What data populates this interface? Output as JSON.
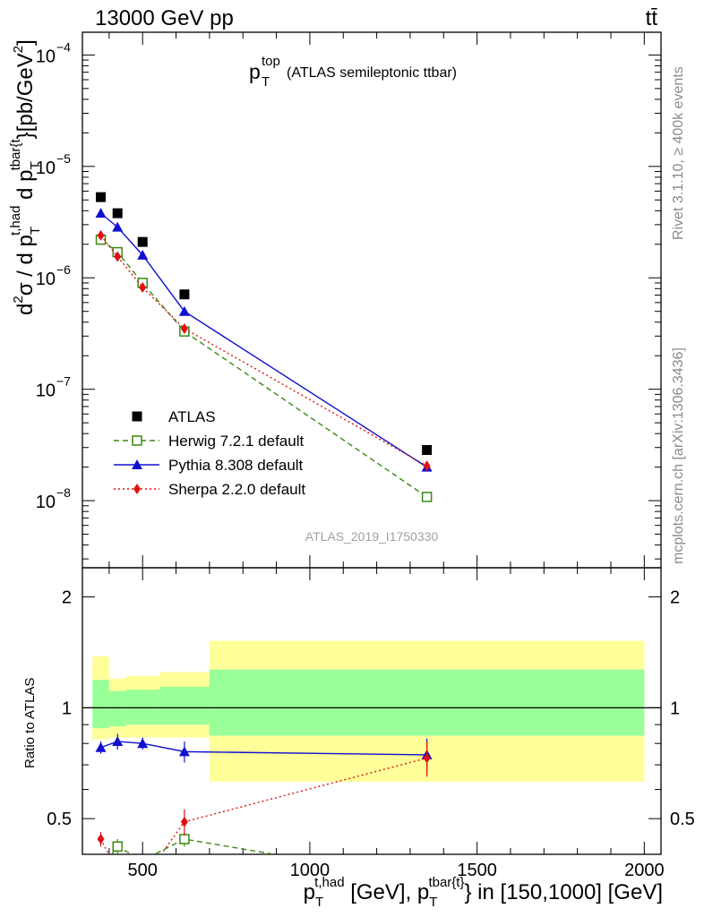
{
  "header": {
    "energy_label": "13000 GeV pp",
    "process_label": "tt̄"
  },
  "side_labels": {
    "rivet": "Rivet 3.1.10, ≥ 400k events",
    "mcplots": "mcplots.cern.ch [arXiv:1306.3436]"
  },
  "watermark": "ATLAS_2019_I1750330",
  "colors": {
    "atlas": "#000000",
    "herwig": "#3a8a12",
    "pythia": "#1010d0",
    "sherpa": "#e01010",
    "band_yellow": "#ffff99",
    "band_green": "#99ff99"
  },
  "chart_data": [
    {
      "type": "scatter",
      "panel": "main",
      "title_main": "p",
      "title_sub": "T",
      "title_sup": "top",
      "title_rest": "(ATLAS semileptonic ttbar)",
      "ylabel": "d²σ / d p_T^{t,had} d p_T^{tbar{t}}[pb/GeV²]",
      "y_scale": "log",
      "xlim": [
        320,
        2050
      ],
      "ylim": [
        2.5e-09,
        0.00016
      ],
      "y_tick_labels": [
        {
          "base": "10",
          "exp": "−8",
          "value": 1e-08
        },
        {
          "base": "10",
          "exp": "−7",
          "value": 1e-07
        },
        {
          "base": "10",
          "exp": "−6",
          "value": 1e-06
        },
        {
          "base": "10",
          "exp": "−5",
          "value": 1e-05
        },
        {
          "base": "10",
          "exp": "−4",
          "value": 0.0001
        }
      ],
      "legend_position": "lower-left",
      "series": [
        {
          "name": "ATLAS",
          "style": "data",
          "marker": "filled-square",
          "x": [
            375,
            425,
            500,
            625,
            1350
          ],
          "y": [
            5.3e-06,
            3.8e-06,
            2.1e-06,
            7.1e-07,
            2.85e-08
          ]
        },
        {
          "name": "Herwig 7.2.1 default",
          "style": "dashed",
          "marker": "open-square",
          "x": [
            375,
            425,
            500,
            625,
            1350
          ],
          "y": [
            2.2e-06,
            1.7e-06,
            9e-07,
            3.3e-07,
            1.08e-08
          ]
        },
        {
          "name": "Pythia 8.308 default",
          "style": "solid",
          "marker": "triangle",
          "x": [
            375,
            425,
            500,
            625,
            1350
          ],
          "y": [
            3.8e-06,
            2.85e-06,
            1.6e-06,
            5e-07,
            2e-08
          ]
        },
        {
          "name": "Sherpa 2.2.0 default",
          "style": "dotted",
          "marker": "diamond",
          "x": [
            375,
            425,
            500,
            625,
            1350
          ],
          "y": [
            2.4e-06,
            1.55e-06,
            8.2e-07,
            3.5e-07,
            2.05e-08
          ]
        }
      ]
    },
    {
      "type": "line",
      "panel": "ratio",
      "ylabel": "Ratio to ATLAS",
      "y_scale": "log",
      "xlim": [
        320,
        2050
      ],
      "ylim": [
        0.4,
        2.4
      ],
      "x_ticks": [
        500,
        1000,
        1500,
        2000
      ],
      "x_tick_labels": [
        "500",
        "1000",
        "1500",
        "2000"
      ],
      "y_ticks": [
        0.5,
        1,
        2
      ],
      "y_tick_labels": [
        "0.5",
        "1",
        "2"
      ],
      "xlabel_parts": {
        "p1": "p",
        "s1": "T",
        "sup1": "t,had",
        "mid": " [GeV], ",
        "p2": "p",
        "s2": "T",
        "sup2": "tbar{t}",
        "tail": "} in [150,1000] [GeV]"
      },
      "bands": [
        {
          "x0": 350,
          "x1": 400,
          "yellow": [
            0.82,
            1.38
          ],
          "green": [
            0.88,
            1.19
          ]
        },
        {
          "x0": 400,
          "x1": 450,
          "yellow": [
            0.83,
            1.2
          ],
          "green": [
            0.89,
            1.11
          ]
        },
        {
          "x0": 450,
          "x1": 550,
          "yellow": [
            0.83,
            1.22
          ],
          "green": [
            0.9,
            1.12
          ]
        },
        {
          "x0": 550,
          "x1": 700,
          "yellow": [
            0.83,
            1.25
          ],
          "green": [
            0.9,
            1.14
          ]
        },
        {
          "x0": 700,
          "x1": 2000,
          "yellow": [
            0.63,
            1.52
          ],
          "green": [
            0.84,
            1.27
          ]
        }
      ],
      "series": [
        {
          "name": "Herwig 7.2.1 default",
          "x": [
            375,
            425,
            500,
            625,
            1350
          ],
          "y": [
            0.365,
            0.42,
            0.385,
            0.44,
            0.34
          ],
          "err": [
            0.01,
            0.02,
            0.015,
            0.02,
            0.02
          ]
        },
        {
          "name": "Pythia 8.308 default",
          "x": [
            375,
            425,
            500,
            625,
            1350
          ],
          "y": [
            0.78,
            0.81,
            0.8,
            0.76,
            0.745
          ],
          "err": [
            0.03,
            0.04,
            0.03,
            0.05,
            0.08
          ]
        },
        {
          "name": "Sherpa 2.2.0 default",
          "x": [
            375,
            425,
            500,
            625,
            1350
          ],
          "y": [
            0.44,
            0.36,
            0.34,
            0.49,
            0.73
          ],
          "err": [
            0.02,
            0.02,
            0.02,
            0.04,
            0.08
          ]
        }
      ]
    }
  ]
}
